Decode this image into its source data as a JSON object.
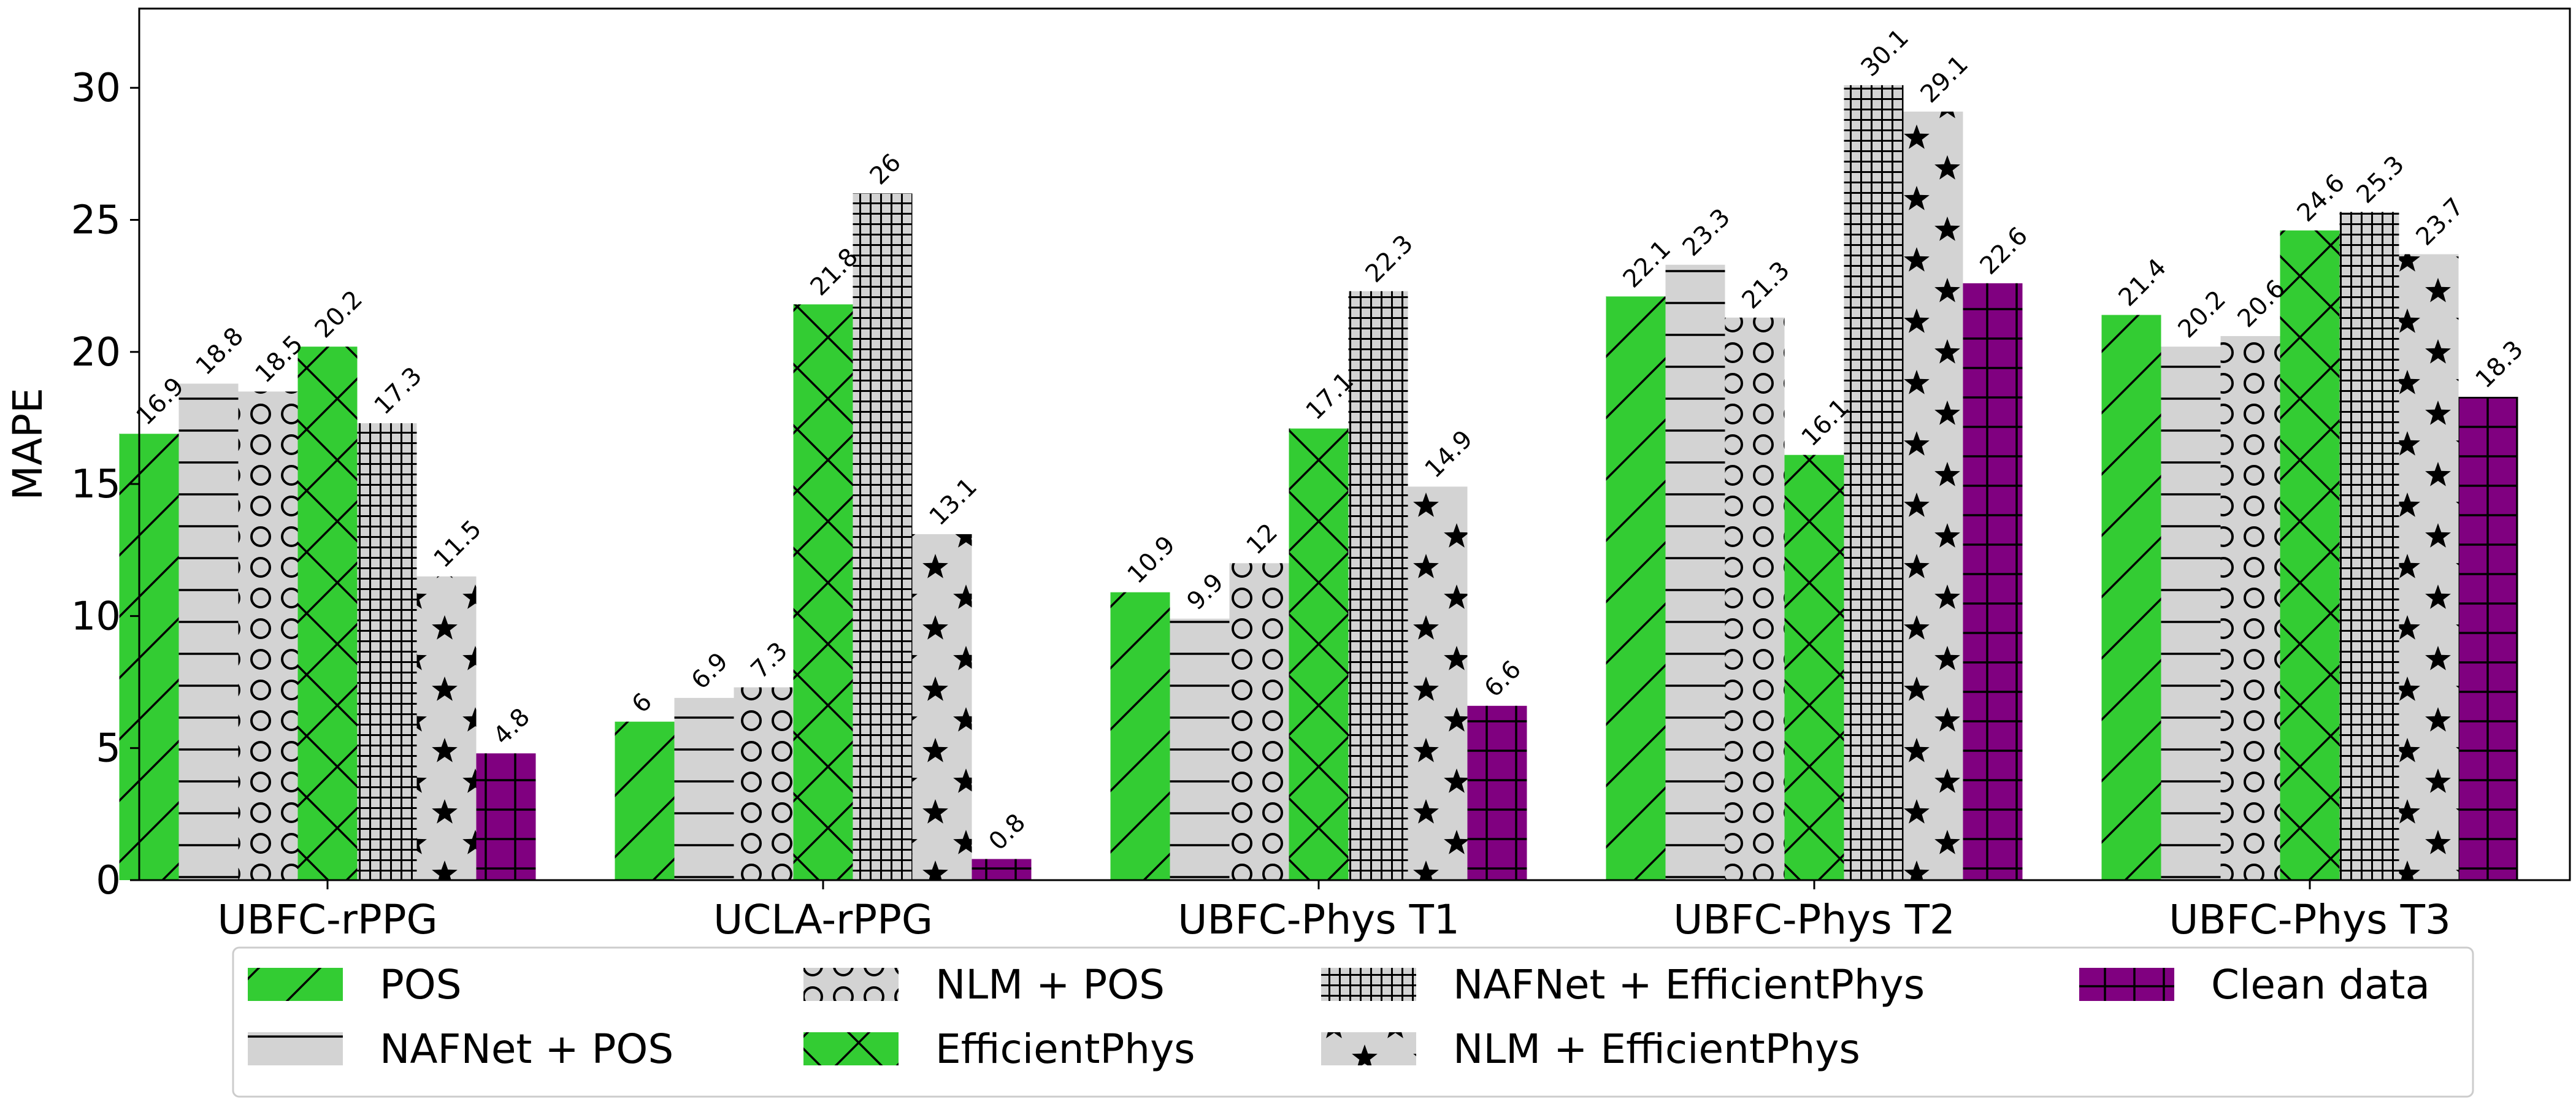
{
  "chart_data": {
    "type": "bar",
    "title": "",
    "xlabel": "",
    "ylabel": "MAPE",
    "ylim": [
      0,
      33
    ],
    "yticks": [
      0,
      5,
      10,
      15,
      20,
      25,
      30
    ],
    "ytick_labels": [
      "0",
      "5",
      "10",
      "15",
      "20",
      "25",
      "30"
    ],
    "grid": false,
    "legend_position": "bottom",
    "categories": [
      "UBFC-rPPG",
      "UCLA-rPPG",
      "UBFC-Phys T1",
      "UBFC-Phys T2",
      "UBFC-Phys T3"
    ],
    "series": [
      {
        "name": "POS",
        "color": "#33cc33",
        "hatch": "slash",
        "values": [
          16.9,
          6,
          10.9,
          22.1,
          21.4
        ],
        "labels": [
          "16.9",
          "6",
          "10.9",
          "22.1",
          "21.4"
        ]
      },
      {
        "name": "NAFNet + POS",
        "color": "#d3d3d3",
        "hatch": "hline",
        "values": [
          18.8,
          6.9,
          9.9,
          23.3,
          20.2
        ],
        "labels": [
          "18.8",
          "6.9",
          "9.9",
          "23.3",
          "20.2"
        ]
      },
      {
        "name": "NLM + POS",
        "color": "#d3d3d3",
        "hatch": "circle",
        "values": [
          18.5,
          7.3,
          12,
          21.3,
          20.6
        ],
        "labels": [
          "18.5",
          "7.3",
          "12",
          "21.3",
          "20.6"
        ]
      },
      {
        "name": "EfficientPhys",
        "color": "#33cc33",
        "hatch": "cross",
        "values": [
          20.2,
          21.8,
          17.1,
          16.1,
          24.6
        ],
        "labels": [
          "20.2",
          "21.8",
          "17.1",
          "16.1",
          "24.6"
        ]
      },
      {
        "name": "NAFNet + EfficientPhys",
        "color": "#d3d3d3",
        "hatch": "grid",
        "values": [
          17.3,
          26,
          22.3,
          30.1,
          25.3
        ],
        "labels": [
          "17.3",
          "26",
          "22.3",
          "30.1",
          "25.3"
        ]
      },
      {
        "name": "NLM + EfficientPhys",
        "color": "#d3d3d3",
        "hatch": "star",
        "values": [
          11.5,
          13.1,
          14.9,
          29.1,
          23.7
        ],
        "labels": [
          "11.5",
          "13.1",
          "14.9",
          "29.1",
          "23.7"
        ]
      },
      {
        "name": "Clean data",
        "color": "#800080",
        "hatch": "wgrid",
        "values": [
          4.8,
          0.8,
          6.6,
          22.6,
          18.3
        ],
        "labels": [
          "4.8",
          "0.8",
          "6.6",
          "22.6",
          "18.3"
        ]
      }
    ]
  }
}
